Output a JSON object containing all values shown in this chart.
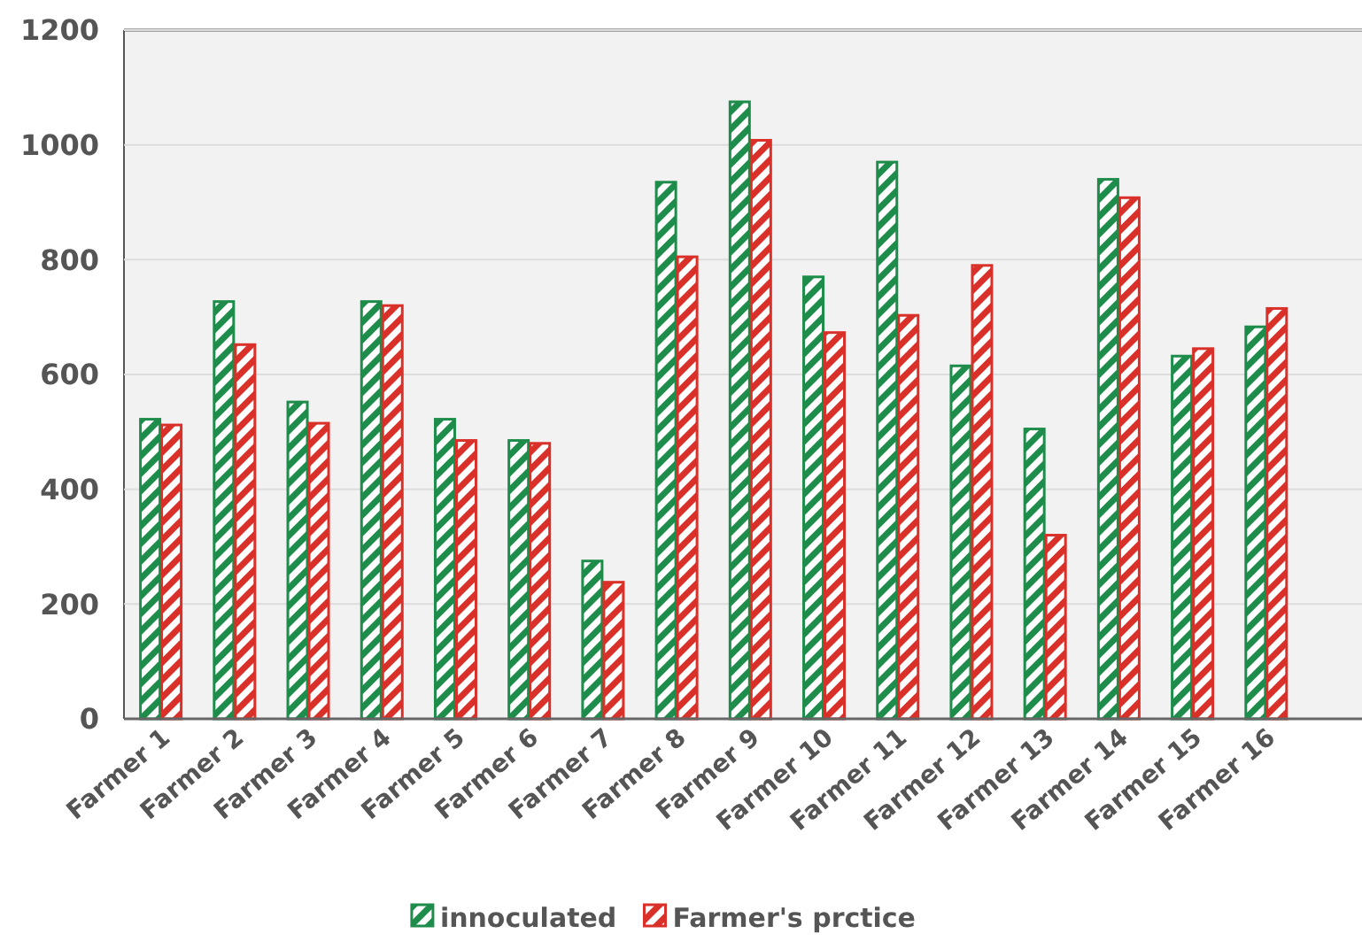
{
  "chart_data": {
    "type": "bar",
    "categories": [
      "Farmer 1",
      "Farmer 2",
      "Farmer 3",
      "Farmer 4",
      "Farmer 5",
      "Farmer 6",
      "Farmer 7",
      "Farmer 8",
      "Farmer 9",
      "Farmer 10",
      "Farmer 11",
      "Farmer 12",
      "Farmer 13",
      "Farmer 14",
      "Farmer 15",
      "Farmer 16"
    ],
    "series": [
      {
        "name": "innoculated",
        "color": "#1e8c4a",
        "values": [
          522,
          727,
          552,
          727,
          522,
          485,
          275,
          935,
          1075,
          770,
          970,
          615,
          505,
          940,
          632,
          683
        ]
      },
      {
        "name": "Farmer's prctice",
        "color": "#d9302a",
        "values": [
          512,
          652,
          515,
          720,
          485,
          480,
          238,
          805,
          1008,
          673,
          703,
          790,
          320,
          908,
          645,
          715
        ]
      }
    ],
    "ylim": [
      0,
      1200
    ],
    "yticks": [
      0,
      200,
      400,
      600,
      800,
      1000,
      1200
    ],
    "grid": "y",
    "legend": "bottom"
  }
}
